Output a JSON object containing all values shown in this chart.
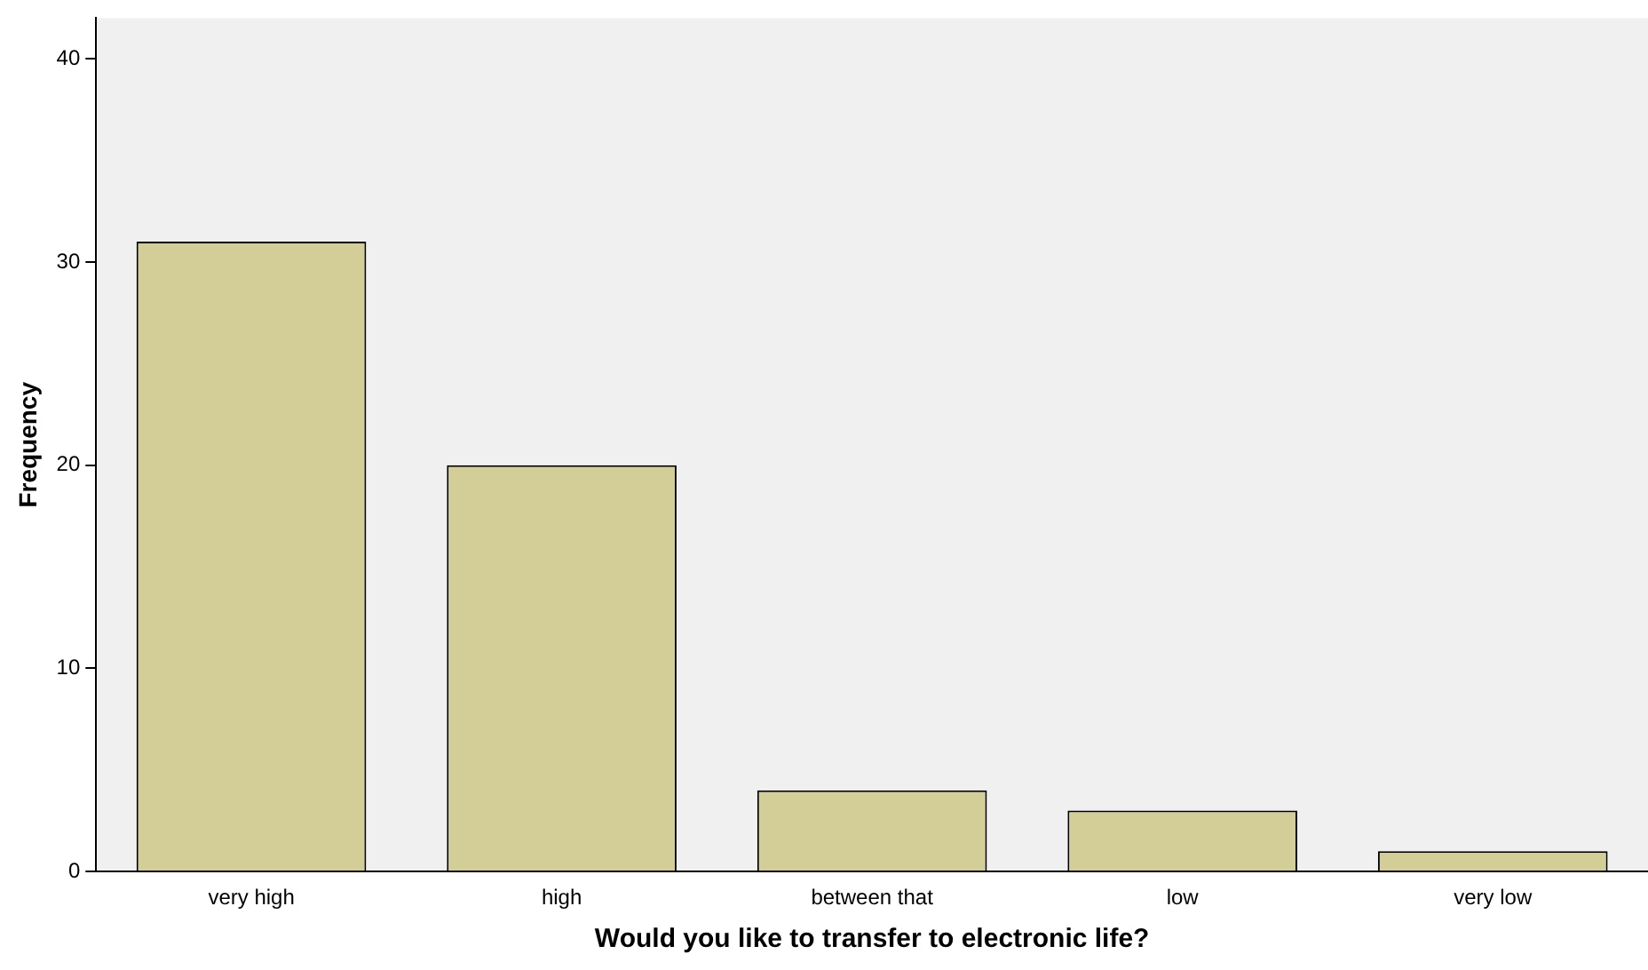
{
  "chart_data": {
    "type": "bar",
    "xlabel": "Would you like to transfer to electronic life?",
    "ylabel": "Frequency",
    "categories": [
      "very high",
      "high",
      "between that",
      "low",
      "very low"
    ],
    "values": [
      31,
      20,
      4,
      3,
      1
    ],
    "color": "#d3ce97",
    "ylim": [
      0,
      42
    ],
    "yticks": [
      0,
      10,
      20,
      30,
      40
    ],
    "grid": false,
    "legend": false
  }
}
